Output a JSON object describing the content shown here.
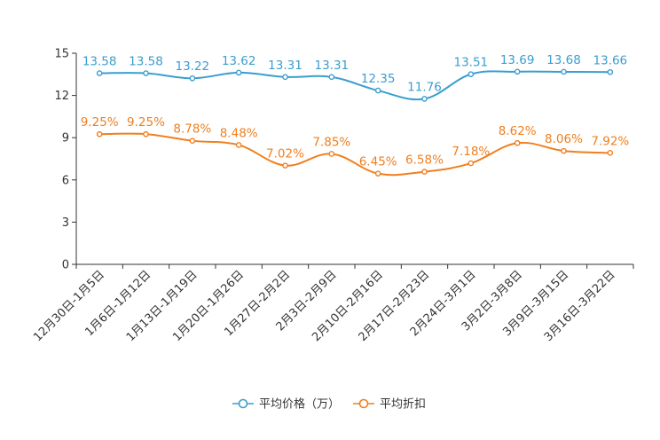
{
  "chart_data": {
    "type": "line",
    "title": "",
    "xlabel": "",
    "ylabel": "",
    "ylim": [
      0,
      15
    ],
    "yticks": [
      0,
      3,
      6,
      9,
      12,
      15
    ],
    "categories": [
      "12月30日-1月5日",
      "1月6日-1月12日",
      "1月13日-1月19日",
      "1月20日-1月26日",
      "1月27日-2月2日",
      "2月3日-2月9日",
      "2月10日-2月16日",
      "2月17日-2月23日",
      "2月24日-3月1日",
      "3月2日-3月8日",
      "3月9日-3月15日",
      "3月16日-3月22日"
    ],
    "series": [
      {
        "name": "平均价格（万）",
        "color": "#3a9ecf",
        "values": [
          13.58,
          13.58,
          13.22,
          13.62,
          13.31,
          13.31,
          12.35,
          11.76,
          13.51,
          13.69,
          13.68,
          13.66
        ],
        "labels": [
          "13.58",
          "13.58",
          "13.22",
          "13.62",
          "13.31",
          "13.31",
          "12.35",
          "11.76",
          "13.51",
          "13.69",
          "13.68",
          "13.66"
        ]
      },
      {
        "name": "平均折扣",
        "color": "#f07f1f",
        "values": [
          9.25,
          9.25,
          8.78,
          8.48,
          7.02,
          7.85,
          6.45,
          6.58,
          7.18,
          8.62,
          8.06,
          7.92
        ],
        "labels": [
          "9.25%",
          "9.25%",
          "8.78%",
          "8.48%",
          "7.02%",
          "7.85%",
          "6.45%",
          "6.58%",
          "7.18%",
          "8.62%",
          "8.06%",
          "7.92%"
        ]
      }
    ],
    "legend_position": "bottom-center",
    "grid": false
  }
}
